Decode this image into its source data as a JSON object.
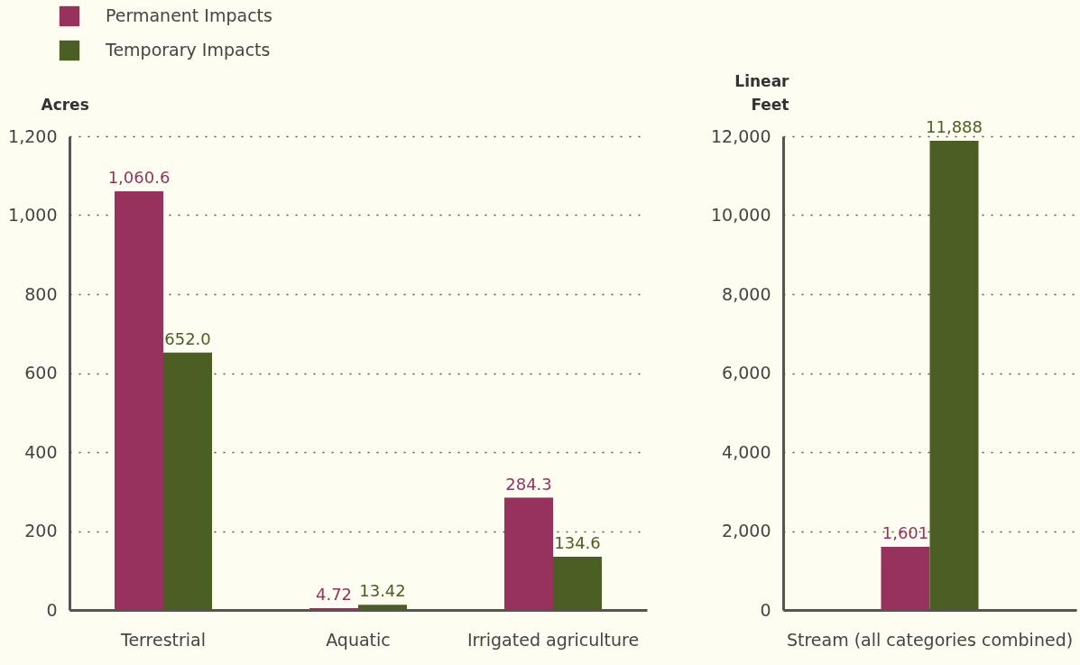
{
  "chart_data": [
    {
      "type": "bar",
      "ylabel": "Acres",
      "categories": [
        "Terrestrial",
        "Aquatic",
        "Irrigated agriculture"
      ],
      "ylim": [
        0,
        1200
      ],
      "yticks": [
        0,
        {
          "value": 200,
          "label": "200"
        },
        400,
        600,
        800,
        {
          "value": 1000,
          "label": "1,000"
        },
        {
          "value": 1200,
          "label": "1,200"
        }
      ],
      "grid": "y",
      "legend": "top left",
      "series": [
        {
          "name": "Permanent Impacts",
          "color": "#96325c",
          "values": [
            1060.6,
            4.72,
            284.3
          ],
          "value_labels": [
            "1,060.6",
            "4.72",
            "284.3"
          ]
        },
        {
          "name": "Temporary Impacts",
          "color": "#4b5e23",
          "values": [
            652.0,
            13.42,
            134.6
          ],
          "value_labels": [
            "652.0",
            "13.42",
            "134.6"
          ]
        }
      ]
    },
    {
      "type": "bar",
      "ylabel": "Linear Feet",
      "categories": [
        "Stream (all categories combined)"
      ],
      "ylim": [
        0,
        12000
      ],
      "yticks": [
        0,
        {
          "value": 2000,
          "label": "2,000"
        },
        {
          "value": 4000,
          "label": "4,000"
        },
        {
          "value": 6000,
          "label": "6,000"
        },
        {
          "value": 8000,
          "label": "8,000"
        },
        {
          "value": 10000,
          "label": "10,000"
        },
        {
          "value": 12000,
          "label": "12,000"
        }
      ],
      "grid": "y",
      "series": [
        {
          "color": "#96325c",
          "values": [
            1601
          ],
          "value_labels": [
            "1,601"
          ]
        },
        {
          "color": "#4b5e23",
          "values": [
            11888
          ],
          "value_labels": [
            "11,888"
          ]
        }
      ]
    }
  ]
}
